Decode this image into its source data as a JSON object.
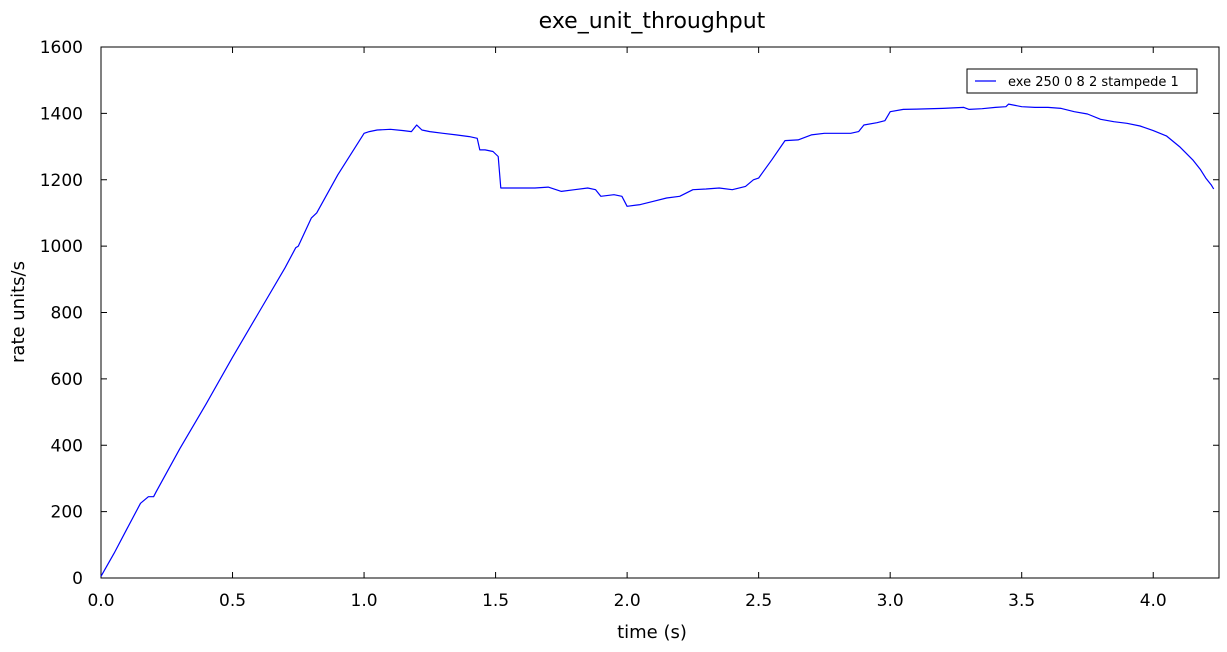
{
  "chart_data": {
    "type": "line",
    "title": "exe_unit_throughput",
    "xlabel": "time (s)",
    "ylabel": "rate units/s",
    "xlim": [
      0.0,
      4.25
    ],
    "ylim": [
      0,
      1600
    ],
    "xticks": [
      0.0,
      0.5,
      1.0,
      1.5,
      2.0,
      2.5,
      3.0,
      3.5,
      4.0
    ],
    "xtick_labels": [
      "0.0",
      "0.5",
      "1.0",
      "1.5",
      "2.0",
      "2.5",
      "3.0",
      "3.5",
      "4.0"
    ],
    "yticks": [
      0,
      200,
      400,
      600,
      800,
      1000,
      1200,
      1400,
      1600
    ],
    "ytick_labels": [
      "0",
      "200",
      "400",
      "600",
      "800",
      "1000",
      "1200",
      "1400",
      "1600"
    ],
    "grid": false,
    "legend_position": "top-right",
    "series": [
      {
        "name": "exe 250 0 8 2 stampede 1",
        "color": "#0000ff",
        "x": [
          0.0,
          0.05,
          0.1,
          0.15,
          0.18,
          0.19,
          0.2,
          0.21,
          0.3,
          0.4,
          0.5,
          0.6,
          0.7,
          0.74,
          0.75,
          0.8,
          0.82,
          0.9,
          1.0,
          1.02,
          1.05,
          1.1,
          1.15,
          1.18,
          1.2,
          1.22,
          1.25,
          1.3,
          1.35,
          1.4,
          1.43,
          1.44,
          1.46,
          1.49,
          1.51,
          1.52,
          1.6,
          1.65,
          1.7,
          1.75,
          1.8,
          1.85,
          1.88,
          1.9,
          1.95,
          1.98,
          2.0,
          2.05,
          2.1,
          2.15,
          2.2,
          2.25,
          2.3,
          2.35,
          2.4,
          2.45,
          2.48,
          2.5,
          2.55,
          2.6,
          2.65,
          2.7,
          2.75,
          2.8,
          2.85,
          2.88,
          2.9,
          2.95,
          2.98,
          3.0,
          3.05,
          3.1,
          3.2,
          3.28,
          3.3,
          3.35,
          3.4,
          3.44,
          3.45,
          3.5,
          3.55,
          3.6,
          3.65,
          3.7,
          3.75,
          3.8,
          3.85,
          3.9,
          3.95,
          4.0,
          4.05,
          4.1,
          4.15,
          4.18,
          4.2,
          4.22,
          4.23
        ],
        "y": [
          5,
          75,
          150,
          225,
          245,
          245,
          245,
          260,
          390,
          525,
          665,
          800,
          935,
          995,
          1000,
          1085,
          1100,
          1215,
          1340,
          1345,
          1350,
          1352,
          1348,
          1345,
          1365,
          1350,
          1345,
          1340,
          1335,
          1330,
          1325,
          1290,
          1290,
          1285,
          1270,
          1175,
          1175,
          1175,
          1178,
          1165,
          1170,
          1175,
          1170,
          1150,
          1155,
          1150,
          1120,
          1125,
          1135,
          1145,
          1150,
          1170,
          1172,
          1175,
          1170,
          1180,
          1200,
          1205,
          1260,
          1318,
          1320,
          1335,
          1340,
          1340,
          1340,
          1345,
          1365,
          1372,
          1378,
          1405,
          1412,
          1413,
          1415,
          1418,
          1412,
          1414,
          1418,
          1420,
          1428,
          1420,
          1418,
          1418,
          1415,
          1405,
          1398,
          1382,
          1375,
          1370,
          1362,
          1348,
          1332,
          1300,
          1260,
          1230,
          1205,
          1185,
          1172
        ]
      }
    ]
  }
}
